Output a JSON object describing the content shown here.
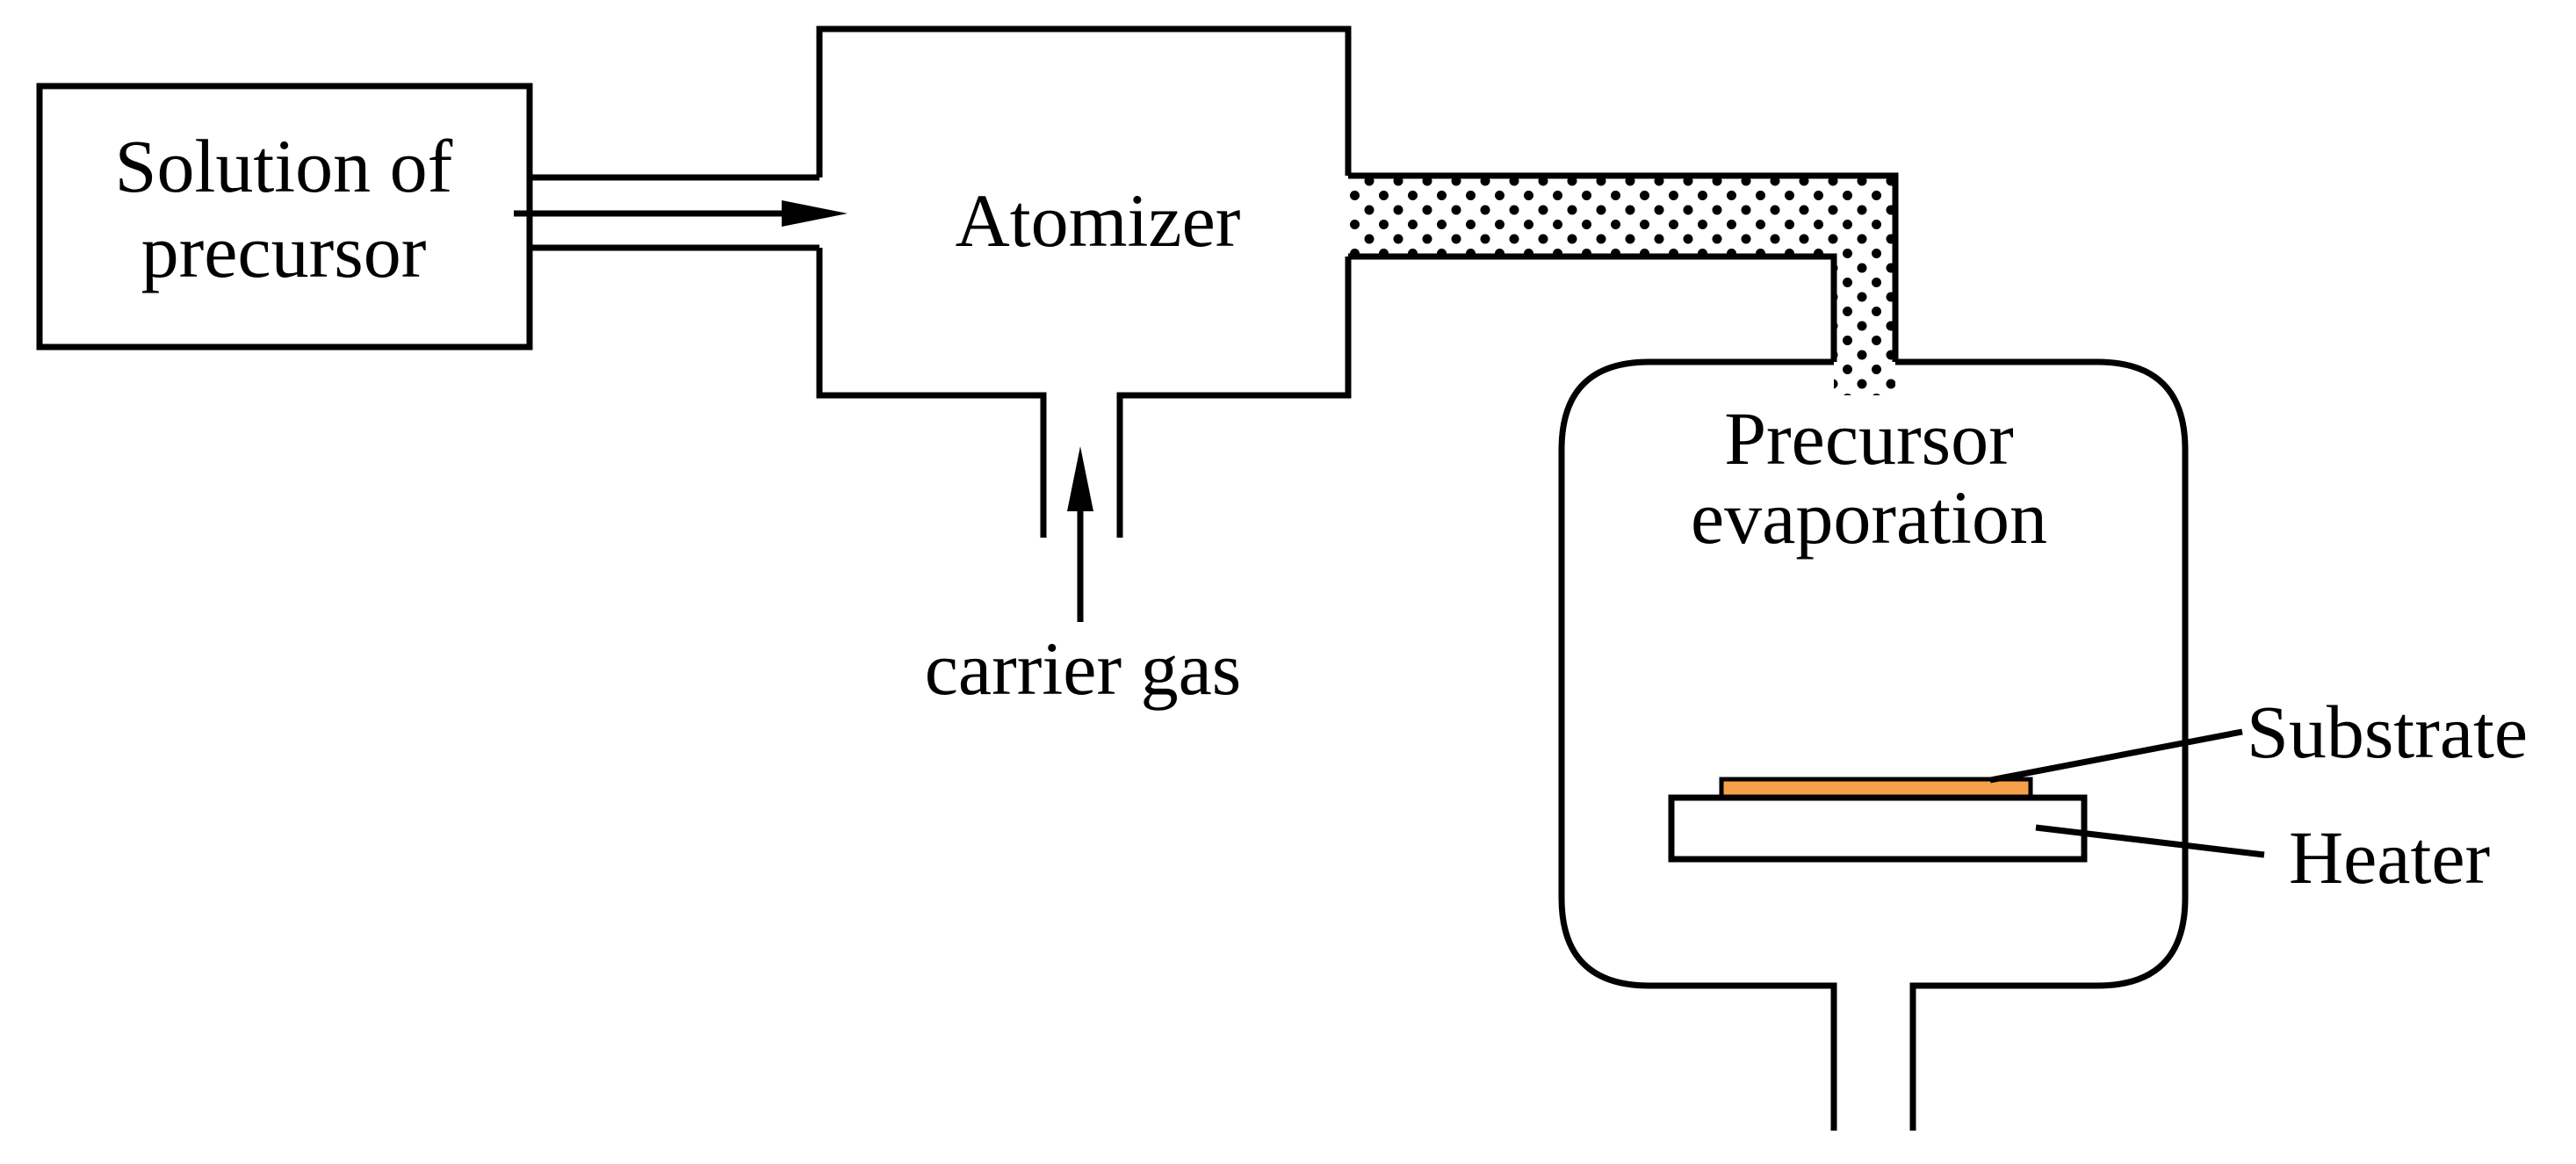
{
  "labels": {
    "solution_line1": "Solution of",
    "solution_line2": "precursor",
    "atomizer": "Atomizer",
    "carrier_gas": "carrier gas",
    "evaporation_line1": "Precursor",
    "evaporation_line2": "evaporation",
    "substrate": "Substrate",
    "heater": "Heater"
  },
  "colors": {
    "line": "#000000",
    "substrate": "#f5a04a",
    "dots": "#000000",
    "background": "#ffffff"
  }
}
